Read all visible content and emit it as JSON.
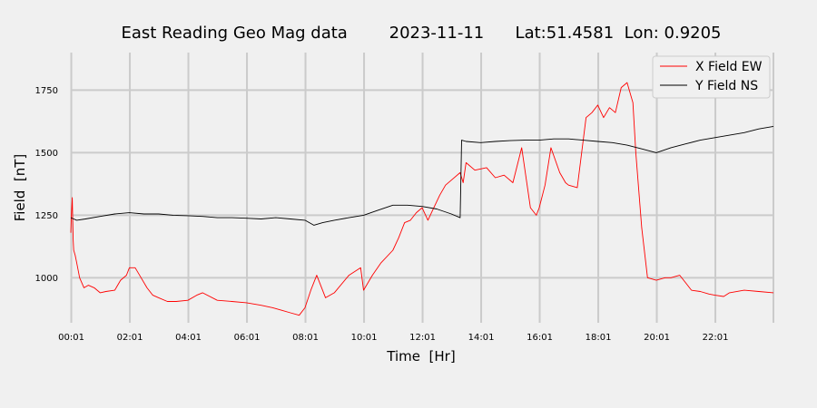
{
  "chart_data": {
    "type": "line",
    "title": "East Reading Geo Mag data        2023-11-11      Lat:51.4581  Lon: 0.9205",
    "xlabel": "Time  [Hr]",
    "ylabel": "Field  [nT]",
    "x_unit": "hours",
    "xlim": [
      0.0,
      24.0
    ],
    "ylim": [
      820,
      1900
    ],
    "x_ticks": [
      0.0167,
      2.0167,
      4.0167,
      6.0167,
      8.0167,
      10.0167,
      12.0167,
      14.0167,
      16.0167,
      18.0167,
      20.0167,
      22.0167,
      24.0
    ],
    "x_tick_labels": [
      "00:01",
      "02:01",
      "04:01",
      "06:01",
      "08:01",
      "10:01",
      "12:01",
      "14:01",
      "16:01",
      "18:01",
      "20:01",
      "22:01",
      ""
    ],
    "y_ticks": [
      1000,
      1250,
      1500,
      1750
    ],
    "y_tick_labels": [
      "1000",
      "1250",
      "1500",
      "1750"
    ],
    "grid": true,
    "legend_position": "top-right",
    "series": [
      {
        "name": "X Field EW",
        "color": "#ff0000",
        "x": [
          0.0,
          0.02,
          0.05,
          0.08,
          0.1,
          0.15,
          0.2,
          0.3,
          0.45,
          0.6,
          0.8,
          1.0,
          1.2,
          1.5,
          1.7,
          1.9,
          2.0,
          2.2,
          2.4,
          2.6,
          2.8,
          3.0,
          3.3,
          3.6,
          4.0,
          4.3,
          4.5,
          5.0,
          5.5,
          6.0,
          6.5,
          6.9,
          7.2,
          7.5,
          7.8,
          8.0,
          8.2,
          8.4,
          8.7,
          9.0,
          9.5,
          9.9,
          10.0,
          10.3,
          10.6,
          11.0,
          11.2,
          11.4,
          11.6,
          11.8,
          12.0,
          12.2,
          12.4,
          12.6,
          12.8,
          13.0,
          13.3,
          13.4,
          13.5,
          13.8,
          14.2,
          14.5,
          14.8,
          15.1,
          15.4,
          15.7,
          15.9,
          16.0,
          16.2,
          16.4,
          16.7,
          16.9,
          17.0,
          17.3,
          17.6,
          17.8,
          18.0,
          18.2,
          18.4,
          18.6,
          18.8,
          19.0,
          19.2,
          19.3,
          19.5,
          19.7,
          20.0,
          20.3,
          20.5,
          20.8,
          21.0,
          21.2,
          21.5,
          21.8,
          22.0,
          22.3,
          22.5,
          23.0,
          23.5,
          24.0
        ],
        "y": [
          1180,
          1250,
          1320,
          1150,
          1110,
          1090,
          1060,
          1000,
          960,
          970,
          960,
          940,
          945,
          950,
          990,
          1010,
          1040,
          1040,
          1000,
          960,
          930,
          920,
          905,
          905,
          910,
          930,
          940,
          910,
          905,
          900,
          890,
          880,
          870,
          860,
          850,
          880,
          950,
          1010,
          920,
          940,
          1010,
          1040,
          950,
          1010,
          1060,
          1110,
          1160,
          1220,
          1230,
          1260,
          1280,
          1230,
          1280,
          1330,
          1370,
          1390,
          1420,
          1380,
          1460,
          1430,
          1440,
          1400,
          1410,
          1380,
          1520,
          1280,
          1250,
          1280,
          1370,
          1520,
          1420,
          1380,
          1370,
          1360,
          1640,
          1660,
          1690,
          1640,
          1680,
          1660,
          1760,
          1780,
          1700,
          1500,
          1200,
          1000,
          990,
          1000,
          1000,
          1010,
          980,
          950,
          945,
          935,
          930,
          925,
          940,
          950,
          945,
          940
        ]
      },
      {
        "name": "Y Field NS",
        "color": "#000000",
        "x": [
          0.0,
          0.1,
          0.2,
          0.5,
          1.0,
          1.5,
          2.0,
          2.5,
          3.0,
          3.5,
          4.0,
          4.5,
          5.0,
          5.5,
          6.0,
          6.5,
          7.0,
          7.5,
          8.0,
          8.3,
          8.6,
          9.0,
          9.5,
          10.0,
          10.5,
          11.0,
          11.5,
          12.0,
          12.5,
          13.0,
          13.3,
          13.35,
          13.5,
          14.0,
          14.5,
          15.0,
          15.5,
          16.0,
          16.5,
          17.0,
          17.5,
          18.0,
          18.5,
          19.0,
          19.5,
          20.0,
          20.5,
          21.0,
          21.5,
          22.0,
          22.5,
          23.0,
          23.5,
          24.0
        ],
        "y": [
          1240,
          1235,
          1230,
          1235,
          1245,
          1255,
          1260,
          1255,
          1255,
          1250,
          1248,
          1245,
          1240,
          1240,
          1238,
          1235,
          1240,
          1235,
          1230,
          1210,
          1220,
          1230,
          1240,
          1250,
          1270,
          1290,
          1290,
          1285,
          1275,
          1255,
          1240,
          1550,
          1545,
          1540,
          1545,
          1548,
          1550,
          1550,
          1555,
          1555,
          1550,
          1545,
          1540,
          1530,
          1515,
          1500,
          1520,
          1535,
          1550,
          1560,
          1570,
          1580,
          1595,
          1605
        ]
      }
    ]
  }
}
